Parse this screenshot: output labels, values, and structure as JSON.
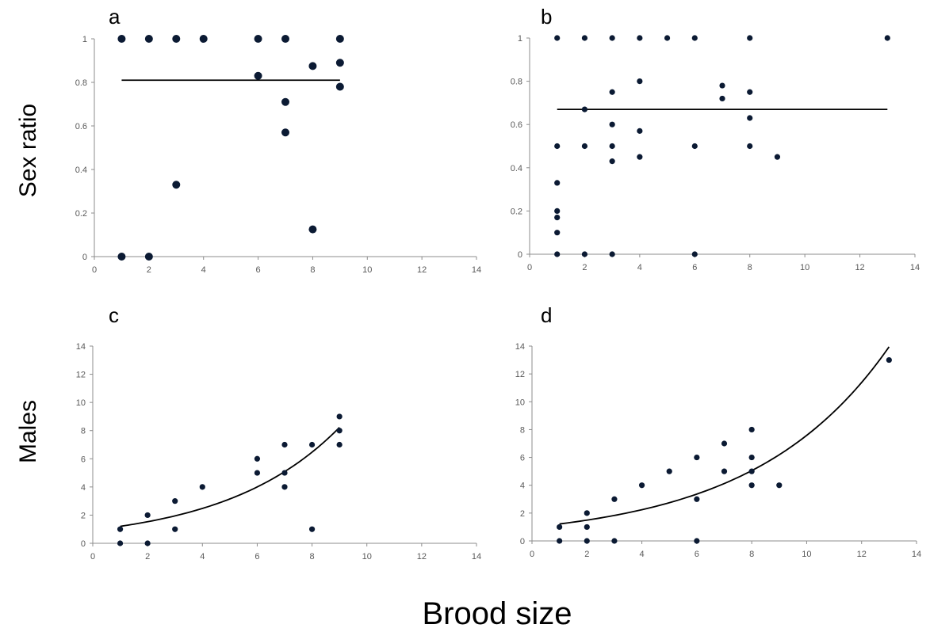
{
  "figure": {
    "ylabel_top": "Sex ratio",
    "ylabel_bottom": "Males",
    "xlabel": "Brood size"
  },
  "colors": {
    "point": "#0b1a33",
    "line": "#000000",
    "axis": "#8c8c8c",
    "tick_text": "#595959"
  },
  "chart_data": [
    {
      "panel": "a",
      "type": "scatter",
      "xlim": [
        0,
        14
      ],
      "ylim": [
        0,
        1
      ],
      "xticks": [
        "0",
        "2",
        "4",
        "6",
        "8",
        "10",
        "12",
        "14"
      ],
      "yticks": [
        "0",
        "0.2",
        "0.4",
        "0.6",
        "0.8",
        "1"
      ],
      "grid": false,
      "marker": "large",
      "points": [
        [
          1,
          1
        ],
        [
          2,
          1
        ],
        [
          3,
          1
        ],
        [
          4,
          1
        ],
        [
          6,
          1
        ],
        [
          7,
          1
        ],
        [
          9,
          1
        ],
        [
          1,
          0
        ],
        [
          2,
          0
        ],
        [
          3,
          0.33
        ],
        [
          6,
          0.83
        ],
        [
          7,
          0.71
        ],
        [
          7,
          0.57
        ],
        [
          8,
          0.875
        ],
        [
          8,
          0.125
        ],
        [
          9,
          0.89
        ],
        [
          9,
          0.78
        ]
      ],
      "fit": {
        "kind": "constant",
        "value": 0.81,
        "x_range": [
          1,
          9
        ]
      }
    },
    {
      "panel": "b",
      "type": "scatter",
      "xlim": [
        0,
        14
      ],
      "ylim": [
        0,
        1
      ],
      "xticks": [
        "0",
        "2",
        "4",
        "6",
        "8",
        "10",
        "12",
        "14"
      ],
      "yticks": [
        "0",
        "0.2",
        "0.4",
        "0.6",
        "0.8",
        "1"
      ],
      "grid": false,
      "marker": "small",
      "points": [
        [
          1,
          1
        ],
        [
          2,
          1
        ],
        [
          3,
          1
        ],
        [
          4,
          1
        ],
        [
          5,
          1
        ],
        [
          6,
          1
        ],
        [
          8,
          1
        ],
        [
          13,
          1
        ],
        [
          4,
          0.8
        ],
        [
          7,
          0.78
        ],
        [
          3,
          0.75
        ],
        [
          8,
          0.75
        ],
        [
          7,
          0.72
        ],
        [
          2,
          0.67
        ],
        [
          8,
          0.63
        ],
        [
          3,
          0.6
        ],
        [
          4,
          0.57
        ],
        [
          1,
          0.5
        ],
        [
          2,
          0.5
        ],
        [
          3,
          0.5
        ],
        [
          6,
          0.5
        ],
        [
          8,
          0.5
        ],
        [
          4,
          0.45
        ],
        [
          9,
          0.45
        ],
        [
          3,
          0.43
        ],
        [
          1,
          0.33
        ],
        [
          1,
          0.2
        ],
        [
          1,
          0.17
        ],
        [
          1,
          0.1
        ],
        [
          1,
          0
        ],
        [
          2,
          0
        ],
        [
          3,
          0
        ],
        [
          6,
          0
        ]
      ],
      "fit": {
        "kind": "constant",
        "value": 0.67,
        "x_range": [
          1,
          13
        ]
      }
    },
    {
      "panel": "c",
      "type": "scatter",
      "xlim": [
        0,
        14
      ],
      "ylim": [
        0,
        14
      ],
      "xticks": [
        "0",
        "2",
        "4",
        "6",
        "8",
        "10",
        "12",
        "14"
      ],
      "yticks": [
        "0",
        "2",
        "4",
        "6",
        "8",
        "10",
        "12",
        "14"
      ],
      "grid": false,
      "marker": "small",
      "points": [
        [
          1,
          1
        ],
        [
          1,
          0
        ],
        [
          2,
          2
        ],
        [
          2,
          0
        ],
        [
          3,
          3
        ],
        [
          3,
          1
        ],
        [
          4,
          4
        ],
        [
          6,
          6
        ],
        [
          6,
          5
        ],
        [
          7,
          7
        ],
        [
          7,
          5
        ],
        [
          7,
          4
        ],
        [
          8,
          7
        ],
        [
          8,
          1
        ],
        [
          9,
          9
        ],
        [
          9,
          8
        ],
        [
          9,
          7
        ]
      ],
      "fit": {
        "kind": "exponential",
        "a": 0.947,
        "b": 0.2402,
        "x_range": [
          1,
          9
        ]
      }
    },
    {
      "panel": "d",
      "type": "scatter",
      "xlim": [
        0,
        14
      ],
      "ylim": [
        0,
        14
      ],
      "xticks": [
        "0",
        "2",
        "4",
        "6",
        "8",
        "10",
        "12",
        "14"
      ],
      "yticks": [
        "0",
        "2",
        "4",
        "6",
        "8",
        "10",
        "12",
        "14"
      ],
      "grid": false,
      "marker": "small",
      "points": [
        [
          1,
          1
        ],
        [
          1,
          0
        ],
        [
          2,
          2
        ],
        [
          2,
          1
        ],
        [
          2,
          0
        ],
        [
          3,
          3
        ],
        [
          3,
          0
        ],
        [
          4,
          4
        ],
        [
          5,
          5
        ],
        [
          6,
          6
        ],
        [
          6,
          3
        ],
        [
          6,
          0
        ],
        [
          7,
          7
        ],
        [
          7,
          5
        ],
        [
          8,
          8
        ],
        [
          8,
          6
        ],
        [
          8,
          5
        ],
        [
          8,
          4
        ],
        [
          9,
          4
        ],
        [
          13,
          13
        ]
      ],
      "fit": {
        "kind": "exponential",
        "a": 0.995,
        "b": 0.2031,
        "x_range": [
          1,
          13
        ]
      }
    }
  ]
}
